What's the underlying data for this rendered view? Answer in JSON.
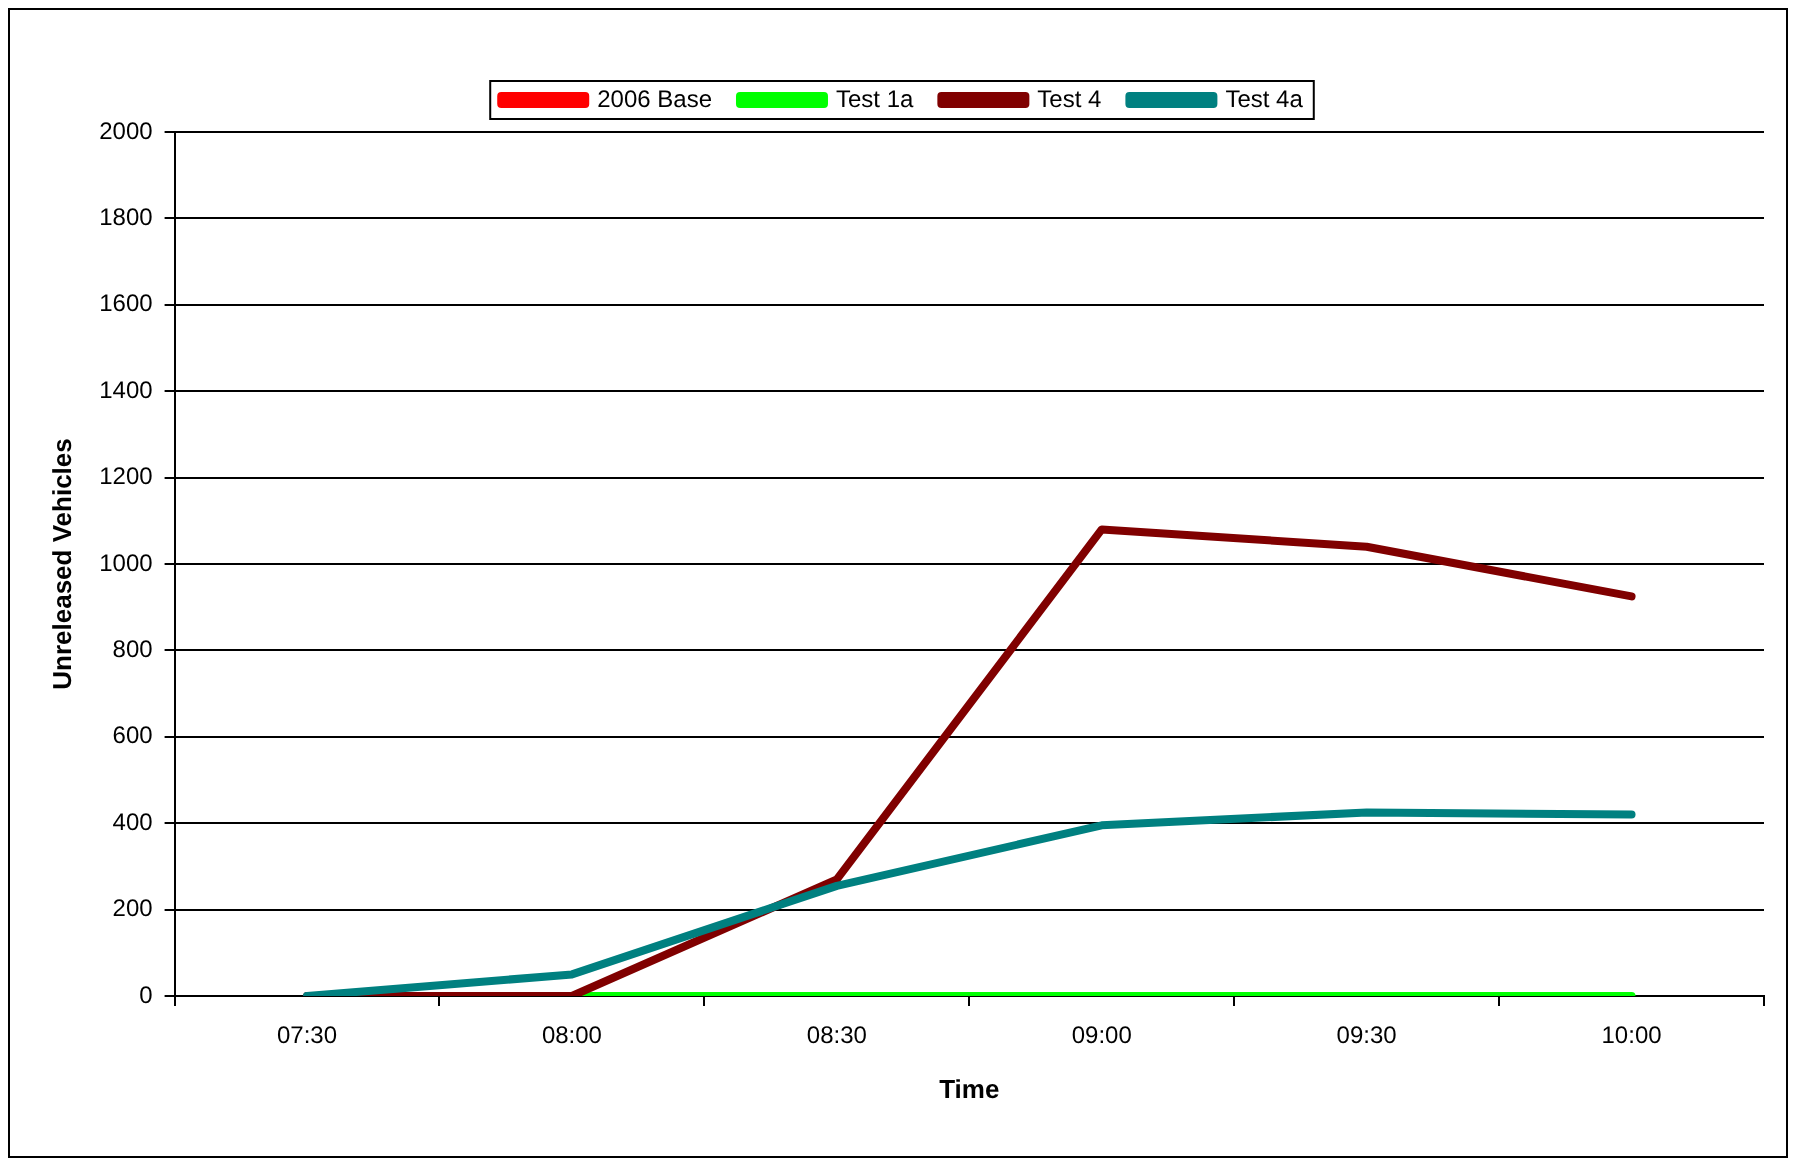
{
  "chart_data": {
    "type": "line",
    "xlabel": "Time",
    "ylabel": "Unreleased Vehicles",
    "categories": [
      "07:30",
      "08:00",
      "08:30",
      "09:00",
      "09:30",
      "10:00"
    ],
    "series": [
      {
        "name": "2006 Base",
        "color": "#ff0000",
        "values": [
          null,
          null,
          null,
          null,
          null,
          null
        ]
      },
      {
        "name": "Test 1a",
        "color": "#00ff00",
        "values": [
          null,
          0,
          0,
          0,
          0,
          0
        ]
      },
      {
        "name": "Test 4",
        "color": "#800000",
        "values": [
          0,
          0,
          270,
          1080,
          1040,
          925
        ]
      },
      {
        "name": "Test 4a",
        "color": "#008080",
        "values": [
          0,
          50,
          255,
          395,
          425,
          420
        ]
      }
    ],
    "ylim": [
      0,
      2000
    ],
    "yticks": [
      0,
      200,
      400,
      600,
      800,
      1000,
      1200,
      1400,
      1600,
      1800,
      2000
    ],
    "grid": "y",
    "legend": "top",
    "marker": "none",
    "line_style": "solid"
  }
}
